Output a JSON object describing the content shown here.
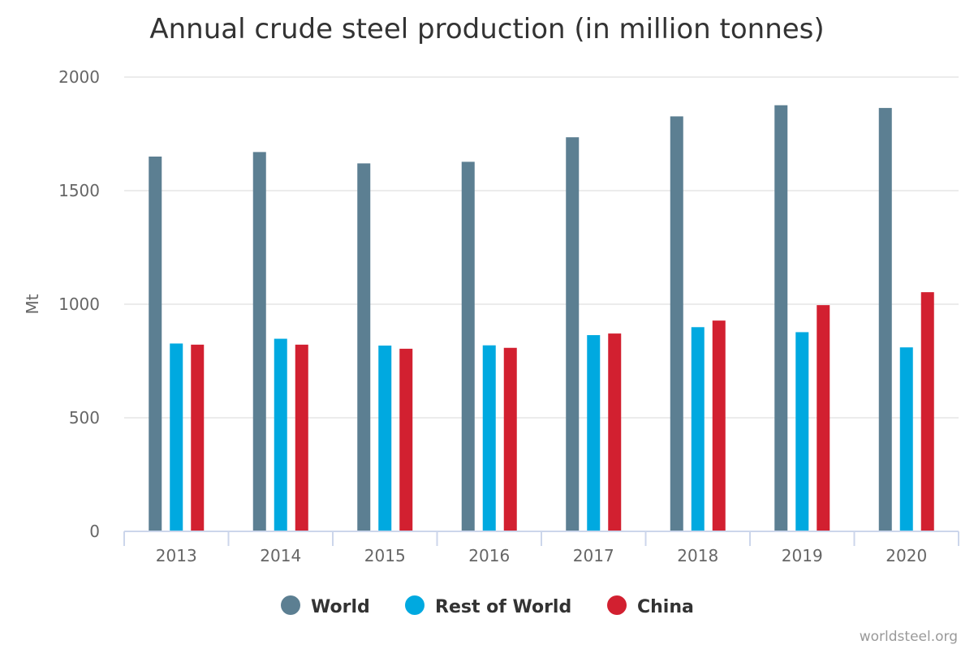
{
  "chart_data": {
    "type": "bar",
    "title": "Annual crude steel production (in million tonnes)",
    "ylabel": "Mt",
    "xlabel": "",
    "categories": [
      "2013",
      "2014",
      "2015",
      "2016",
      "2017",
      "2018",
      "2019",
      "2020"
    ],
    "ylim": [
      0,
      2000
    ],
    "yticks": [
      "0",
      "500",
      "1000",
      "1500",
      "2000"
    ],
    "grid": true,
    "legend_position": "bottom",
    "series": [
      {
        "name": "World",
        "color": "#5c7f92",
        "values": [
          1650,
          1670,
          1620,
          1627,
          1735,
          1827,
          1876,
          1864
        ]
      },
      {
        "name": "Rest of World",
        "color": "#00a9e0",
        "values": [
          827,
          848,
          818,
          819,
          864,
          899,
          877,
          810
        ]
      },
      {
        "name": "China",
        "color": "#d22030",
        "values": [
          822,
          822,
          804,
          808,
          871,
          928,
          996,
          1053
        ]
      }
    ]
  },
  "credit": "worldsteel.org"
}
